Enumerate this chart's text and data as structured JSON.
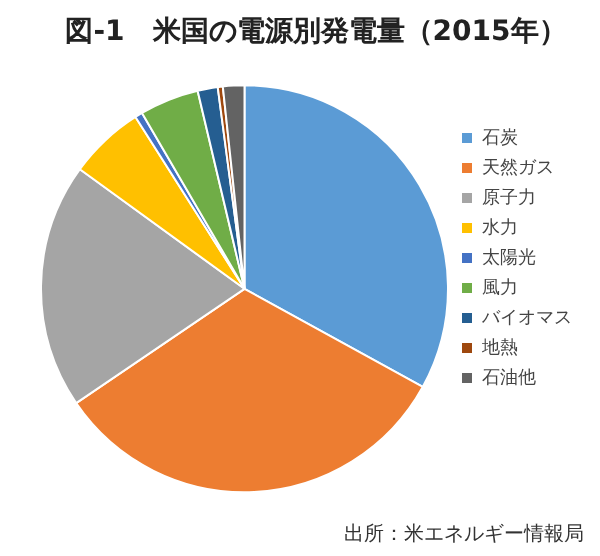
{
  "chart_data": {
    "type": "pie",
    "title": "図-1　米国の電源別発電量（2015年）",
    "categories": [
      "石炭",
      "天然ガス",
      "原子力",
      "水力",
      "太陽光",
      "風力",
      "バイオマス",
      "地熱",
      "石油他"
    ],
    "values": [
      33,
      32.5,
      19.5,
      6,
      0.6,
      4.7,
      1.6,
      0.4,
      1.7
    ],
    "colors": [
      "#5b9bd5",
      "#ed7d31",
      "#a5a5a5",
      "#ffc000",
      "#4472c4",
      "#70ad47",
      "#255e91",
      "#9e480e",
      "#636363"
    ],
    "legend": "right",
    "annotations": [
      "出所：米エネルギー情報局"
    ]
  }
}
